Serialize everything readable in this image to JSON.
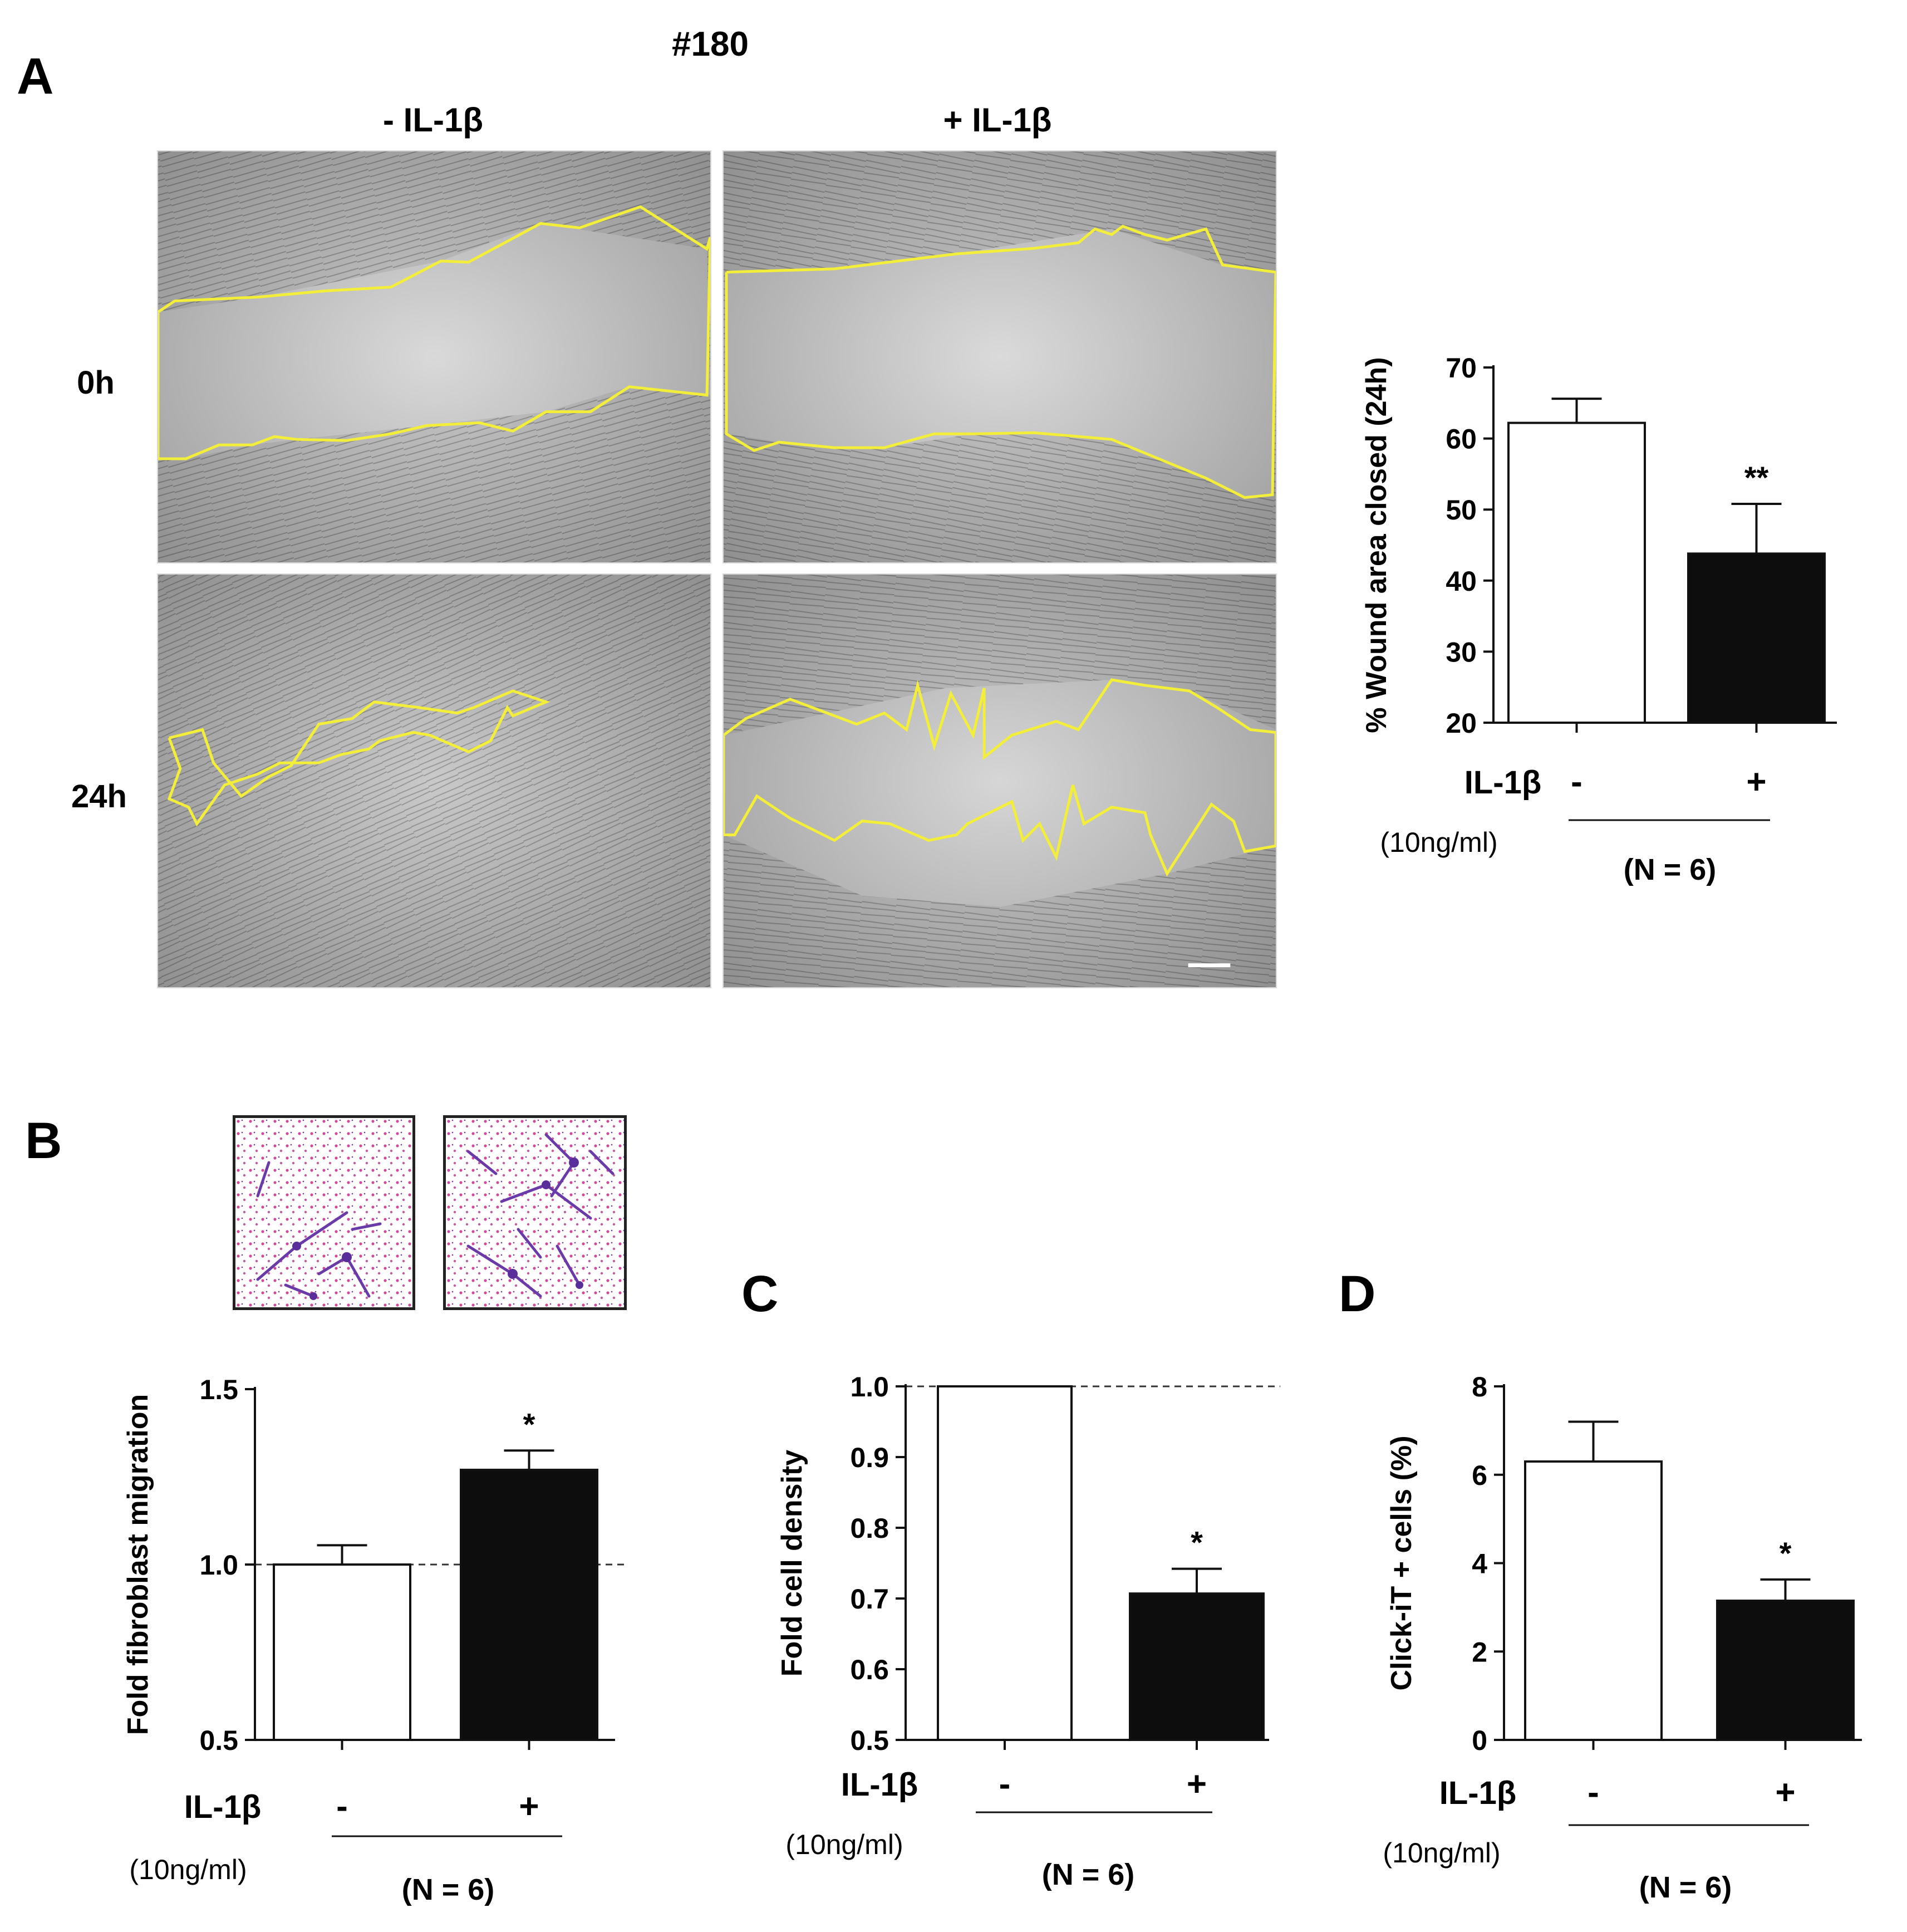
{
  "panel_a": {
    "letter": "A",
    "sample_id": "#180",
    "col_minus": "- IL-1β",
    "col_plus": "+ IL-1β",
    "row_0h": "0h",
    "row_24h": "24h"
  },
  "panels": {
    "b": "B",
    "c": "C",
    "d": "D"
  },
  "colors": {
    "wound_outline": "#f2ee3a",
    "bar_control": "#ffffff",
    "bar_treated": "#0d0d0d",
    "stain_pink": "#d04a9a",
    "stain_purple": "#6a3ba8"
  },
  "chart_data": [
    {
      "id": "A",
      "type": "bar",
      "ylabel": "% Wound area closed (24h)",
      "ylim": [
        20,
        70
      ],
      "yticks": [
        "20",
        "30",
        "40",
        "50",
        "60",
        "70"
      ],
      "categories": [
        "-",
        "+"
      ],
      "values": [
        62.2,
        43.8
      ],
      "errors": [
        3.4,
        7.0
      ],
      "significance": [
        "",
        "**"
      ],
      "factor_label": "IL-1β",
      "dose_label": "(10ng/ml)",
      "n_label": "(N = 6)",
      "reference_line": null
    },
    {
      "id": "B",
      "type": "bar",
      "ylabel": "Fold fibroblast migration",
      "ylim": [
        0.5,
        1.5
      ],
      "yticks": [
        "0.5",
        "1.0",
        "1.5"
      ],
      "categories": [
        "-",
        "+"
      ],
      "values": [
        1.0,
        1.27
      ],
      "errors": [
        0.055,
        0.055
      ],
      "significance": [
        "",
        "*"
      ],
      "factor_label": "IL-1β",
      "dose_label": "(10ng/ml)",
      "n_label": "(N = 6)",
      "reference_line": 1.0
    },
    {
      "id": "C",
      "type": "bar",
      "ylabel": "Fold cell density",
      "ylim": [
        0.5,
        1.0
      ],
      "yticks": [
        "0.5",
        "0.6",
        "0.7",
        "0.8",
        "0.9",
        "1.0"
      ],
      "categories": [
        "-",
        "+"
      ],
      "values": [
        1.0,
        0.707
      ],
      "errors": [
        0.0,
        0.035
      ],
      "significance": [
        "",
        "*"
      ],
      "factor_label": "IL-1β",
      "dose_label": "(10ng/ml)",
      "n_label": "(N = 6)",
      "reference_line": 1.0
    },
    {
      "id": "D",
      "type": "bar",
      "ylabel": "Click-iT + cells (%)",
      "ylim": [
        0,
        8
      ],
      "yticks": [
        "0",
        "2",
        "4",
        "6",
        "8"
      ],
      "categories": [
        "-",
        "+"
      ],
      "values": [
        6.3,
        3.15
      ],
      "errors": [
        0.9,
        0.48
      ],
      "significance": [
        "",
        "*"
      ],
      "factor_label": "IL-1β",
      "dose_label": "(10ng/ml)",
      "n_label": "(N = 6)",
      "reference_line": null
    }
  ]
}
